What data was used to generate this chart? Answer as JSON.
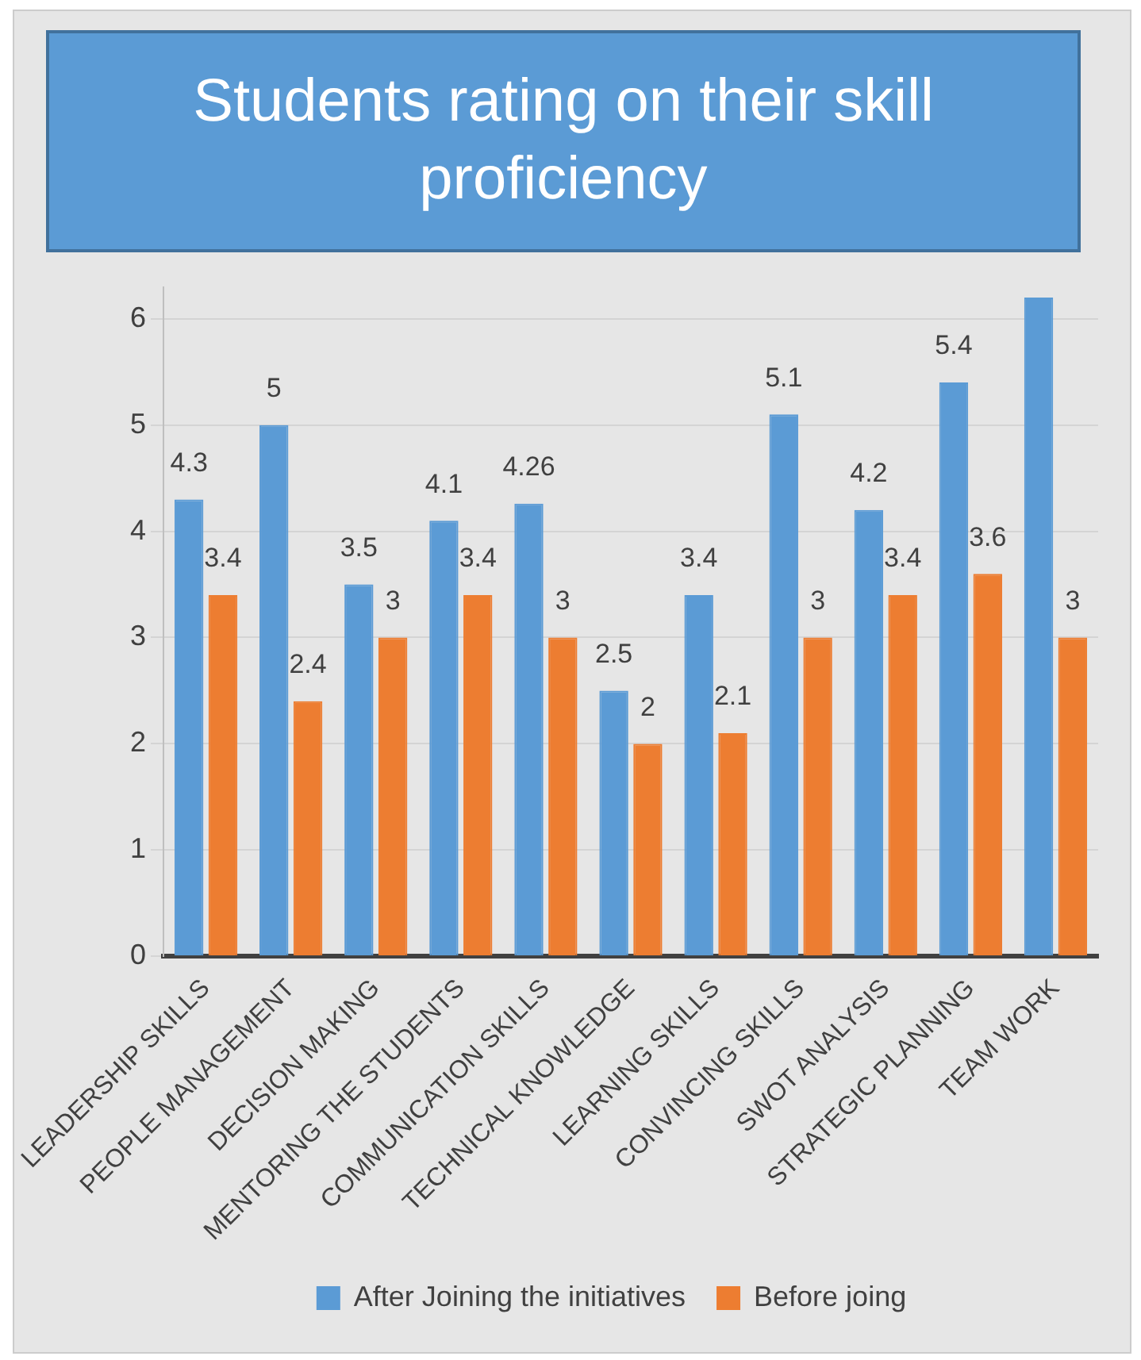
{
  "chart_data": {
    "type": "bar",
    "title": "Students rating on their skill proficiency",
    "categories": [
      "LEADERSHIP SKILLS",
      "PEOPLE MANAGEMENT",
      "DECISION MAKING",
      "MENTORING THE STUDENTS",
      "COMMUNICATION SKILLS",
      "TECHNICAL KNOWLEDGE",
      "LEARNING SKILLS",
      "CONVINCING SKILLS",
      "SWOT ANALYSIS",
      "STRATEGIC PLANNING",
      "TEAM WORK"
    ],
    "series": [
      {
        "name": "After Joining the initiatives",
        "color": "#5b9bd5",
        "values": [
          4.3,
          5,
          3.5,
          4.1,
          4.26,
          2.5,
          3.4,
          5.1,
          4.2,
          5.4,
          6.2
        ],
        "value_labels": [
          "4.3",
          "5",
          "3.5",
          "4.1",
          "4.26",
          "2.5",
          "3.4",
          "5.1",
          "4.2",
          "5.4",
          null
        ]
      },
      {
        "name": "Before joing",
        "color": "#ed7d31",
        "values": [
          3.4,
          2.4,
          3,
          3.4,
          3,
          2,
          2.1,
          3,
          3.4,
          3.6,
          3
        ],
        "value_labels": [
          "3.4",
          "2.4",
          "3",
          "3.4",
          "3",
          "2",
          "2.1",
          "3",
          "3.4",
          "3.6",
          "3"
        ]
      }
    ],
    "ylim": [
      0,
      6.3
    ],
    "yticks": [
      0,
      1,
      2,
      3,
      4,
      5,
      6
    ],
    "grid": "y",
    "legend": "bottom"
  }
}
